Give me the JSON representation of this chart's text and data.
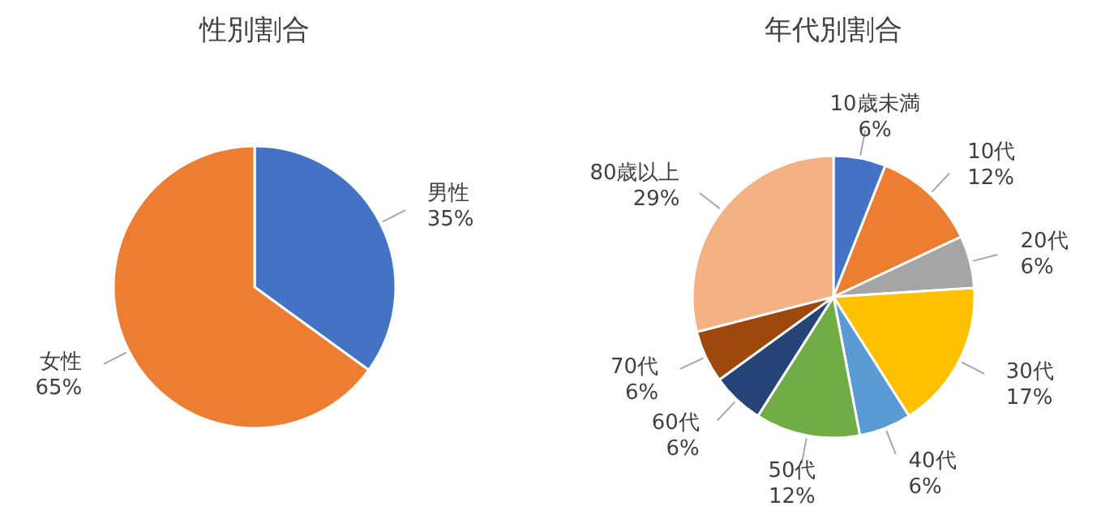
{
  "chart_data": [
    {
      "type": "pie",
      "title": "性別割合",
      "categories": [
        "男性",
        "女性"
      ],
      "values": [
        35,
        65
      ],
      "colors": [
        "#4472c4",
        "#ed7d31"
      ],
      "value_labels": [
        "35%",
        "65%"
      ]
    },
    {
      "type": "pie",
      "title": "年代別割合",
      "categories": [
        "10歳未満",
        "10代",
        "20代",
        "30代",
        "40代",
        "50代",
        "60代",
        "70代",
        "80歳以上"
      ],
      "values": [
        6,
        12,
        6,
        17,
        6,
        12,
        6,
        6,
        29
      ],
      "colors": [
        "#4472c4",
        "#ed7d31",
        "#a5a5a5",
        "#ffc000",
        "#5b9bd5",
        "#70ad47",
        "#264478",
        "#9e480e",
        "#f4b183"
      ],
      "value_labels": [
        "6%",
        "12%",
        "6%",
        "17%",
        "6%",
        "12%",
        "6%",
        "6%",
        "29%"
      ]
    }
  ]
}
